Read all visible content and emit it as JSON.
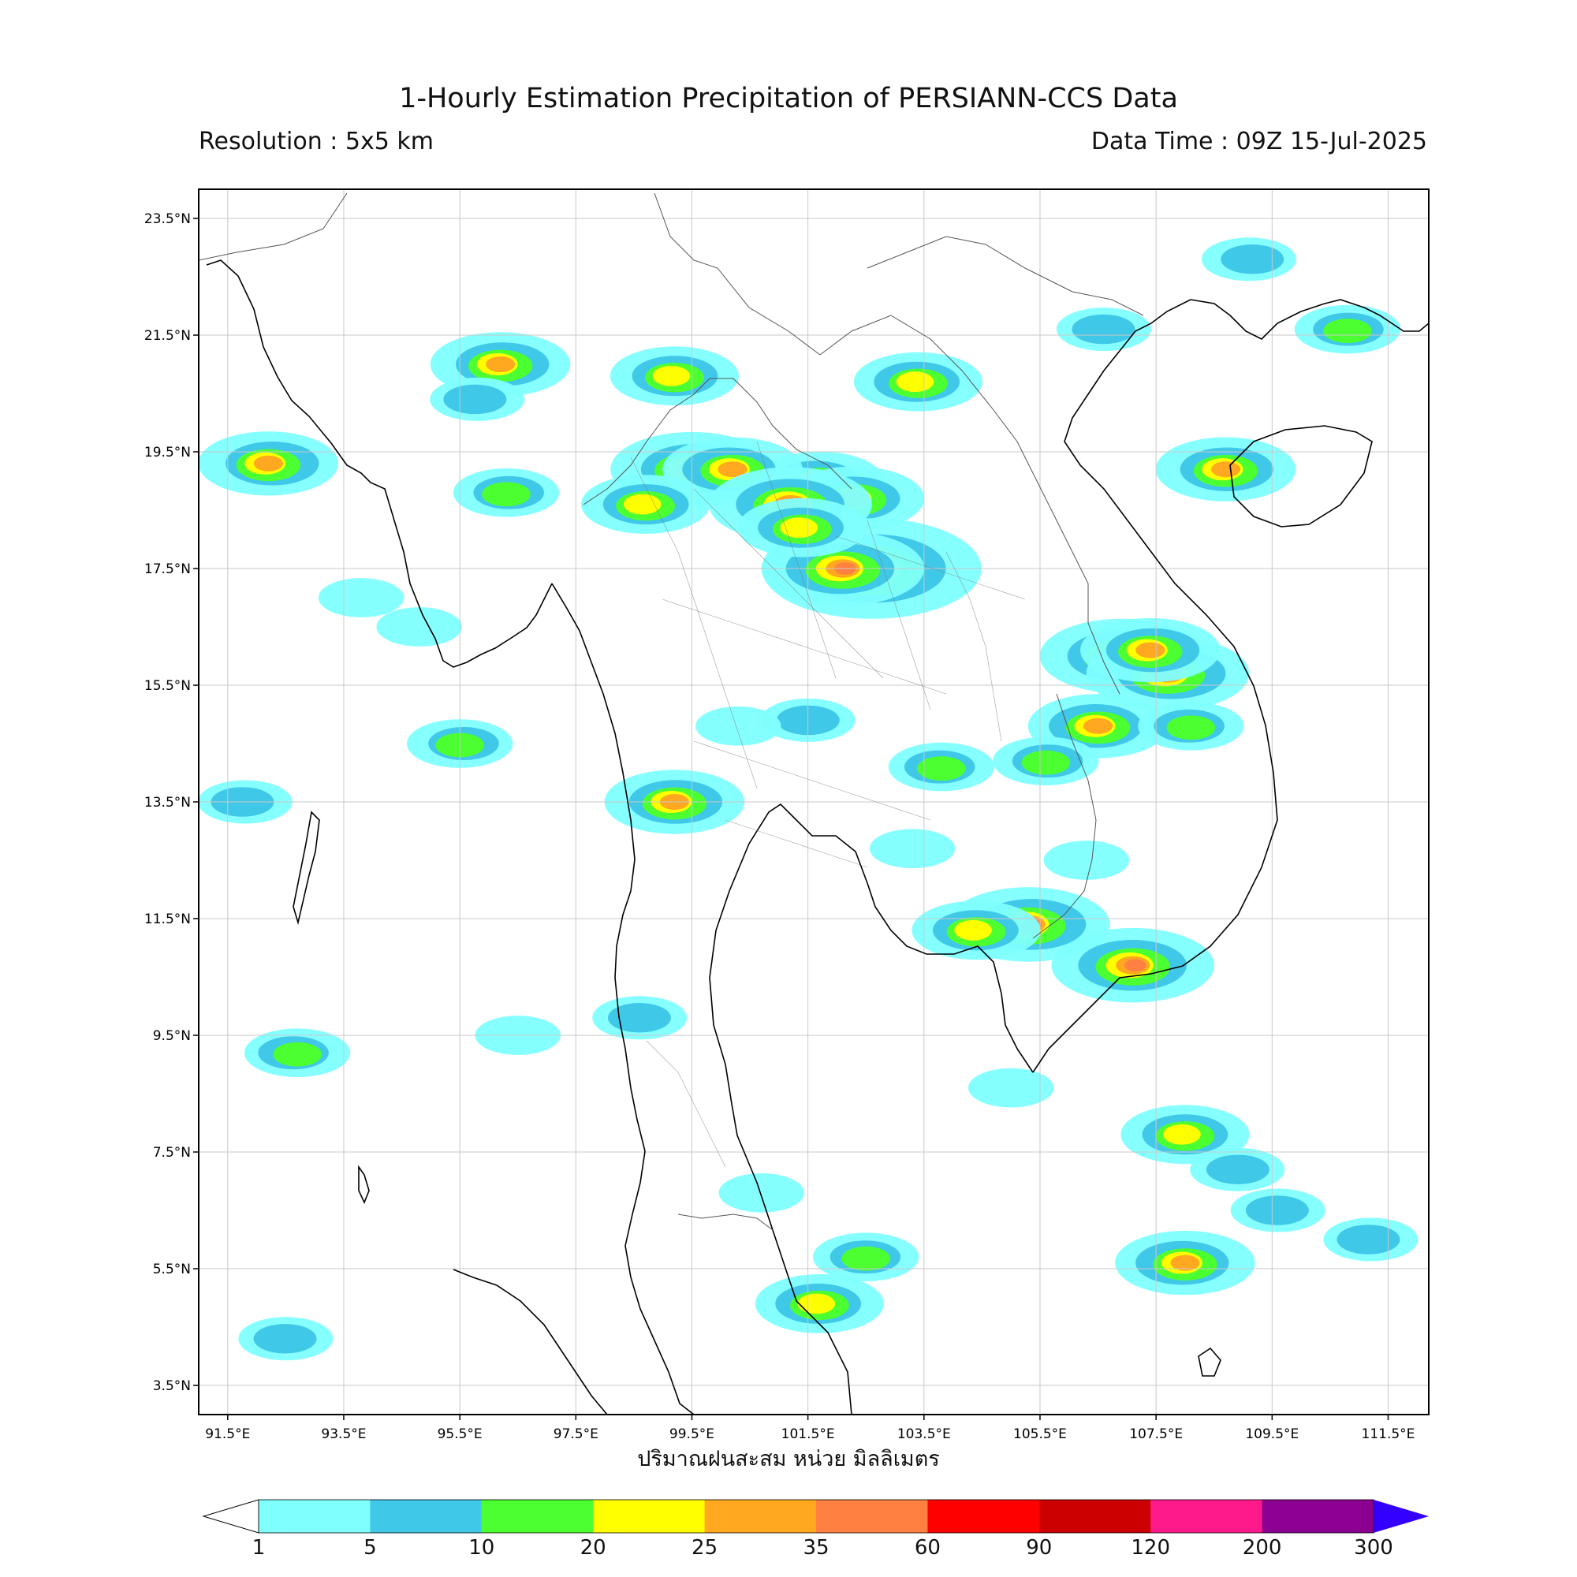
{
  "title": "1-Hourly Estimation Precipitation of PERSIANN-CCS Data",
  "resolution": "Resolution : 5x5 km",
  "data_time": "Data Time : 09Z 15-Jul-2025",
  "xlabel": "ปริมาณฝนสะสม หน่วย มิลลิเมตร",
  "map": {
    "lon_range": [
      91.0,
      112.2
    ],
    "lat_range": [
      3.0,
      24.0
    ],
    "lon_ticks": [
      "91.5°E",
      "93.5°E",
      "95.5°E",
      "97.5°E",
      "99.5°E",
      "101.5°E",
      "103.5°E",
      "105.5°E",
      "107.5°E",
      "109.5°E",
      "111.5°E"
    ],
    "lon_values": [
      91.5,
      93.5,
      95.5,
      97.5,
      99.5,
      101.5,
      103.5,
      105.5,
      107.5,
      109.5,
      111.5
    ],
    "lat_ticks": [
      "23.5°N",
      "21.5°N",
      "19.5°N",
      "17.5°N",
      "15.5°N",
      "13.5°N",
      "11.5°N",
      "9.5°N",
      "7.5°N",
      "5.5°N",
      "3.5°N"
    ],
    "lat_values": [
      23.5,
      21.5,
      19.5,
      17.5,
      15.5,
      13.5,
      11.5,
      9.5,
      7.5,
      5.5,
      3.5
    ],
    "grid": true
  },
  "colorbar": {
    "labels": [
      "1",
      "5",
      "10",
      "20",
      "25",
      "35",
      "60",
      "90",
      "120",
      "200",
      "300"
    ],
    "colors": [
      "#80ffff",
      "#40c8e8",
      "#4cff30",
      "#ffff00",
      "#ffa820",
      "#ff8040",
      "#ff0000",
      "#cc0000",
      "#ff1a8c",
      "#8b0090"
    ],
    "over_color": "#3300ff",
    "under_color": "#ffffff"
  },
  "rain_cells": [
    {
      "lon": 101.7,
      "lat": 19.0,
      "mm": 20
    },
    {
      "lon": 99.5,
      "lat": 19.2,
      "mm": 35
    },
    {
      "lon": 100.2,
      "lat": 19.2,
      "mm": 25
    },
    {
      "lon": 98.7,
      "lat": 18.6,
      "mm": 20
    },
    {
      "lon": 102.3,
      "lat": 18.7,
      "mm": 25
    },
    {
      "lon": 101.2,
      "lat": 18.6,
      "mm": 35
    },
    {
      "lon": 102.6,
      "lat": 17.5,
      "mm": 60
    },
    {
      "lon": 102.1,
      "lat": 17.5,
      "mm": 35
    },
    {
      "lon": 101.4,
      "lat": 18.2,
      "mm": 20
    },
    {
      "lon": 106.9,
      "lat": 16.0,
      "mm": 35
    },
    {
      "lon": 107.7,
      "lat": 15.7,
      "mm": 35
    },
    {
      "lon": 107.4,
      "lat": 16.1,
      "mm": 25
    },
    {
      "lon": 106.5,
      "lat": 14.8,
      "mm": 25
    },
    {
      "lon": 92.2,
      "lat": 19.3,
      "mm": 25
    },
    {
      "lon": 96.3,
      "lat": 18.8,
      "mm": 10
    },
    {
      "lon": 107.1,
      "lat": 10.7,
      "mm": 35
    },
    {
      "lon": 105.3,
      "lat": 11.4,
      "mm": 35
    },
    {
      "lon": 104.4,
      "lat": 11.3,
      "mm": 20
    },
    {
      "lon": 108.7,
      "lat": 19.2,
      "mm": 25
    },
    {
      "lon": 103.4,
      "lat": 20.7,
      "mm": 20
    },
    {
      "lon": 96.2,
      "lat": 21.0,
      "mm": 25
    },
    {
      "lon": 99.2,
      "lat": 20.8,
      "mm": 20
    },
    {
      "lon": 99.2,
      "lat": 13.5,
      "mm": 25
    },
    {
      "lon": 102.5,
      "lat": 5.7,
      "mm": 10
    },
    {
      "lon": 108.0,
      "lat": 5.6,
      "mm": 25
    },
    {
      "lon": 101.7,
      "lat": 4.9,
      "mm": 20
    },
    {
      "lon": 108.0,
      "lat": 7.8,
      "mm": 20
    },
    {
      "lon": 92.7,
      "lat": 9.2,
      "mm": 10
    },
    {
      "lon": 91.8,
      "lat": 13.5,
      "mm": 5
    },
    {
      "lon": 92.5,
      "lat": 4.3,
      "mm": 5
    },
    {
      "lon": 95.5,
      "lat": 14.5,
      "mm": 10
    },
    {
      "lon": 105.6,
      "lat": 14.2,
      "mm": 10
    },
    {
      "lon": 103.8,
      "lat": 14.1,
      "mm": 10
    },
    {
      "lon": 109.6,
      "lat": 6.5,
      "mm": 5
    },
    {
      "lon": 111.2,
      "lat": 6.0,
      "mm": 5
    },
    {
      "lon": 108.9,
      "lat": 7.2,
      "mm": 5
    },
    {
      "lon": 105.0,
      "lat": 8.6,
      "mm": 1
    },
    {
      "lon": 96.5,
      "lat": 9.5,
      "mm": 1
    },
    {
      "lon": 98.6,
      "lat": 9.8,
      "mm": 5
    },
    {
      "lon": 100.7,
      "lat": 6.8,
      "mm": 1
    },
    {
      "lon": 110.8,
      "lat": 21.6,
      "mm": 10
    },
    {
      "lon": 109.1,
      "lat": 22.8,
      "mm": 5
    },
    {
      "lon": 106.6,
      "lat": 21.6,
      "mm": 5
    },
    {
      "lon": 95.8,
      "lat": 20.4,
      "mm": 5
    },
    {
      "lon": 103.3,
      "lat": 12.7,
      "mm": 1
    },
    {
      "lon": 106.3,
      "lat": 12.5,
      "mm": 1
    },
    {
      "lon": 108.1,
      "lat": 14.8,
      "mm": 10
    },
    {
      "lon": 101.5,
      "lat": 14.9,
      "mm": 5
    },
    {
      "lon": 100.3,
      "lat": 14.8,
      "mm": 1
    },
    {
      "lon": 93.8,
      "lat": 17.0,
      "mm": 1
    },
    {
      "lon": 94.8,
      "lat": 16.5,
      "mm": 1
    }
  ]
}
